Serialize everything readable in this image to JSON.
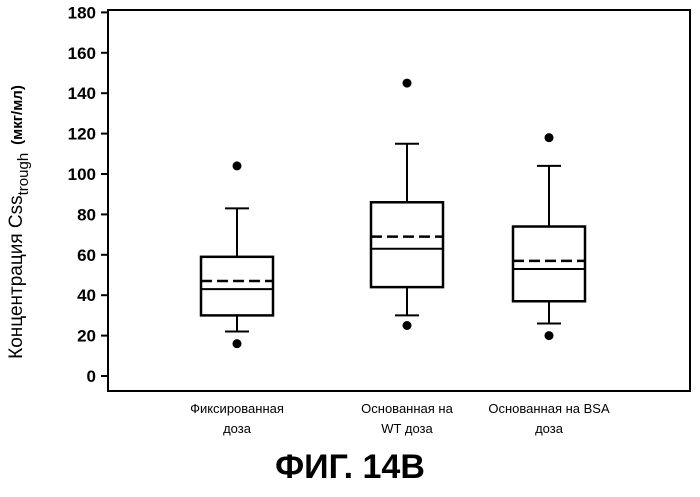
{
  "figure_label": "ФИГ. 14В",
  "chart_data": {
    "type": "box",
    "ylabel": {
      "main": "Концентрация  Css",
      "subscript": "trough",
      "unit": "(мкг/мл)"
    },
    "xlabel": "",
    "ylim": [
      -5,
      180
    ],
    "yticks": [
      0,
      20,
      40,
      60,
      80,
      100,
      120,
      140,
      160,
      180
    ],
    "grid": false,
    "categories": [
      [
        "Фиксированная",
        "доза"
      ],
      [
        "Основанная на",
        "WT доза"
      ],
      [
        "Основанная на BSA",
        "доза"
      ]
    ],
    "boxes": [
      {
        "whisker_low": 22,
        "q1": 30,
        "median": 43,
        "mean": 47,
        "q3": 59,
        "whisker_high": 83,
        "outliers": [
          16,
          104
        ]
      },
      {
        "whisker_low": 30,
        "q1": 44,
        "median": 63,
        "mean": 69,
        "q3": 86,
        "whisker_high": 115,
        "outliers": [
          25,
          145
        ]
      },
      {
        "whisker_low": 26,
        "q1": 37,
        "median": 53,
        "mean": 57,
        "q3": 74,
        "whisker_high": 104,
        "outliers": [
          20,
          118
        ]
      }
    ]
  }
}
